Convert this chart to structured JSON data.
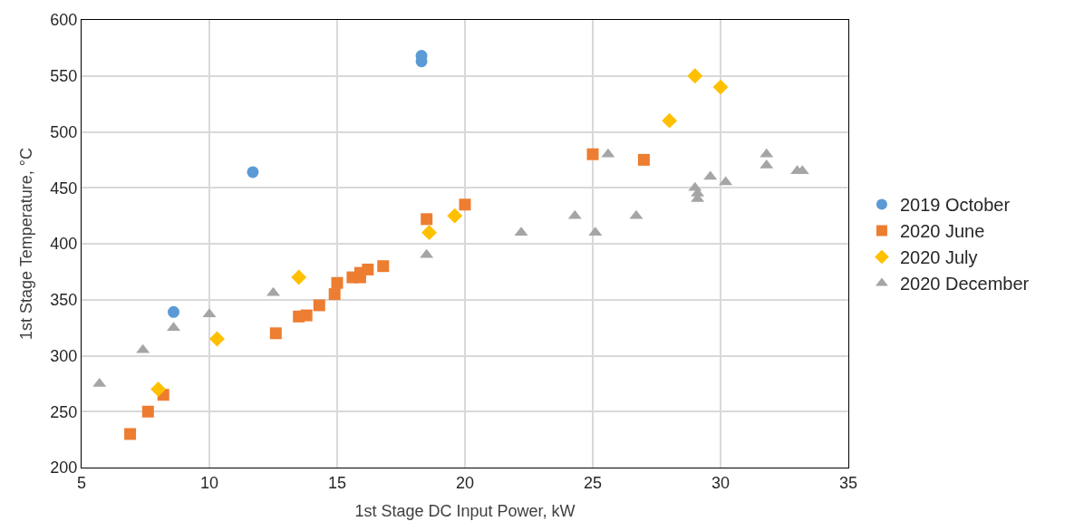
{
  "chart_data": {
    "type": "scatter",
    "xlabel": "1st Stage DC Input Power, kW",
    "ylabel": "1st Stage Temperature, °C",
    "xlim": [
      5,
      35
    ],
    "xticks": [
      5,
      10,
      15,
      20,
      25,
      30,
      35
    ],
    "ylim": [
      200,
      600
    ],
    "yticks": [
      200,
      250,
      300,
      350,
      400,
      450,
      500,
      550,
      600
    ],
    "grid": true,
    "legend": "right",
    "series": [
      {
        "name": "2019 October",
        "color": "#5b9bd5",
        "marker": "circle",
        "x": [
          8.6,
          11.7,
          18.3,
          18.3
        ],
        "values": [
          339,
          464,
          568,
          563
        ]
      },
      {
        "name": "2020 June",
        "color": "#ed7d31",
        "marker": "square",
        "x": [
          6.9,
          7.6,
          8.2,
          12.6,
          13.5,
          13.8,
          14.3,
          14.9,
          15.0,
          15.6,
          15.9,
          15.9,
          16.2,
          16.8,
          18.5,
          20.0,
          25.0,
          27.0
        ],
        "values": [
          230,
          250,
          265,
          320,
          335,
          336,
          345,
          355,
          365,
          370,
          370,
          374,
          377,
          380,
          422,
          435,
          480,
          475
        ]
      },
      {
        "name": "2020 July",
        "color": "#ffc000",
        "marker": "diamond",
        "x": [
          8.0,
          10.3,
          13.5,
          18.6,
          19.6,
          28.0,
          29.0,
          30.0
        ],
        "values": [
          270,
          315,
          370,
          410,
          425,
          510,
          550,
          540
        ]
      },
      {
        "name": "2020 December",
        "color": "#a5a5a5",
        "marker": "triangle",
        "x": [
          5.7,
          7.4,
          8.6,
          10.0,
          12.5,
          18.5,
          22.2,
          24.3,
          25.1,
          25.6,
          26.7,
          29.0,
          29.1,
          29.1,
          29.6,
          30.2,
          31.8,
          31.8,
          33.0,
          33.2
        ],
        "values": [
          275,
          305,
          325,
          337,
          356,
          390,
          410,
          425,
          410,
          480,
          425,
          450,
          445,
          440,
          460,
          455,
          480,
          470,
          465,
          465
        ]
      }
    ]
  }
}
